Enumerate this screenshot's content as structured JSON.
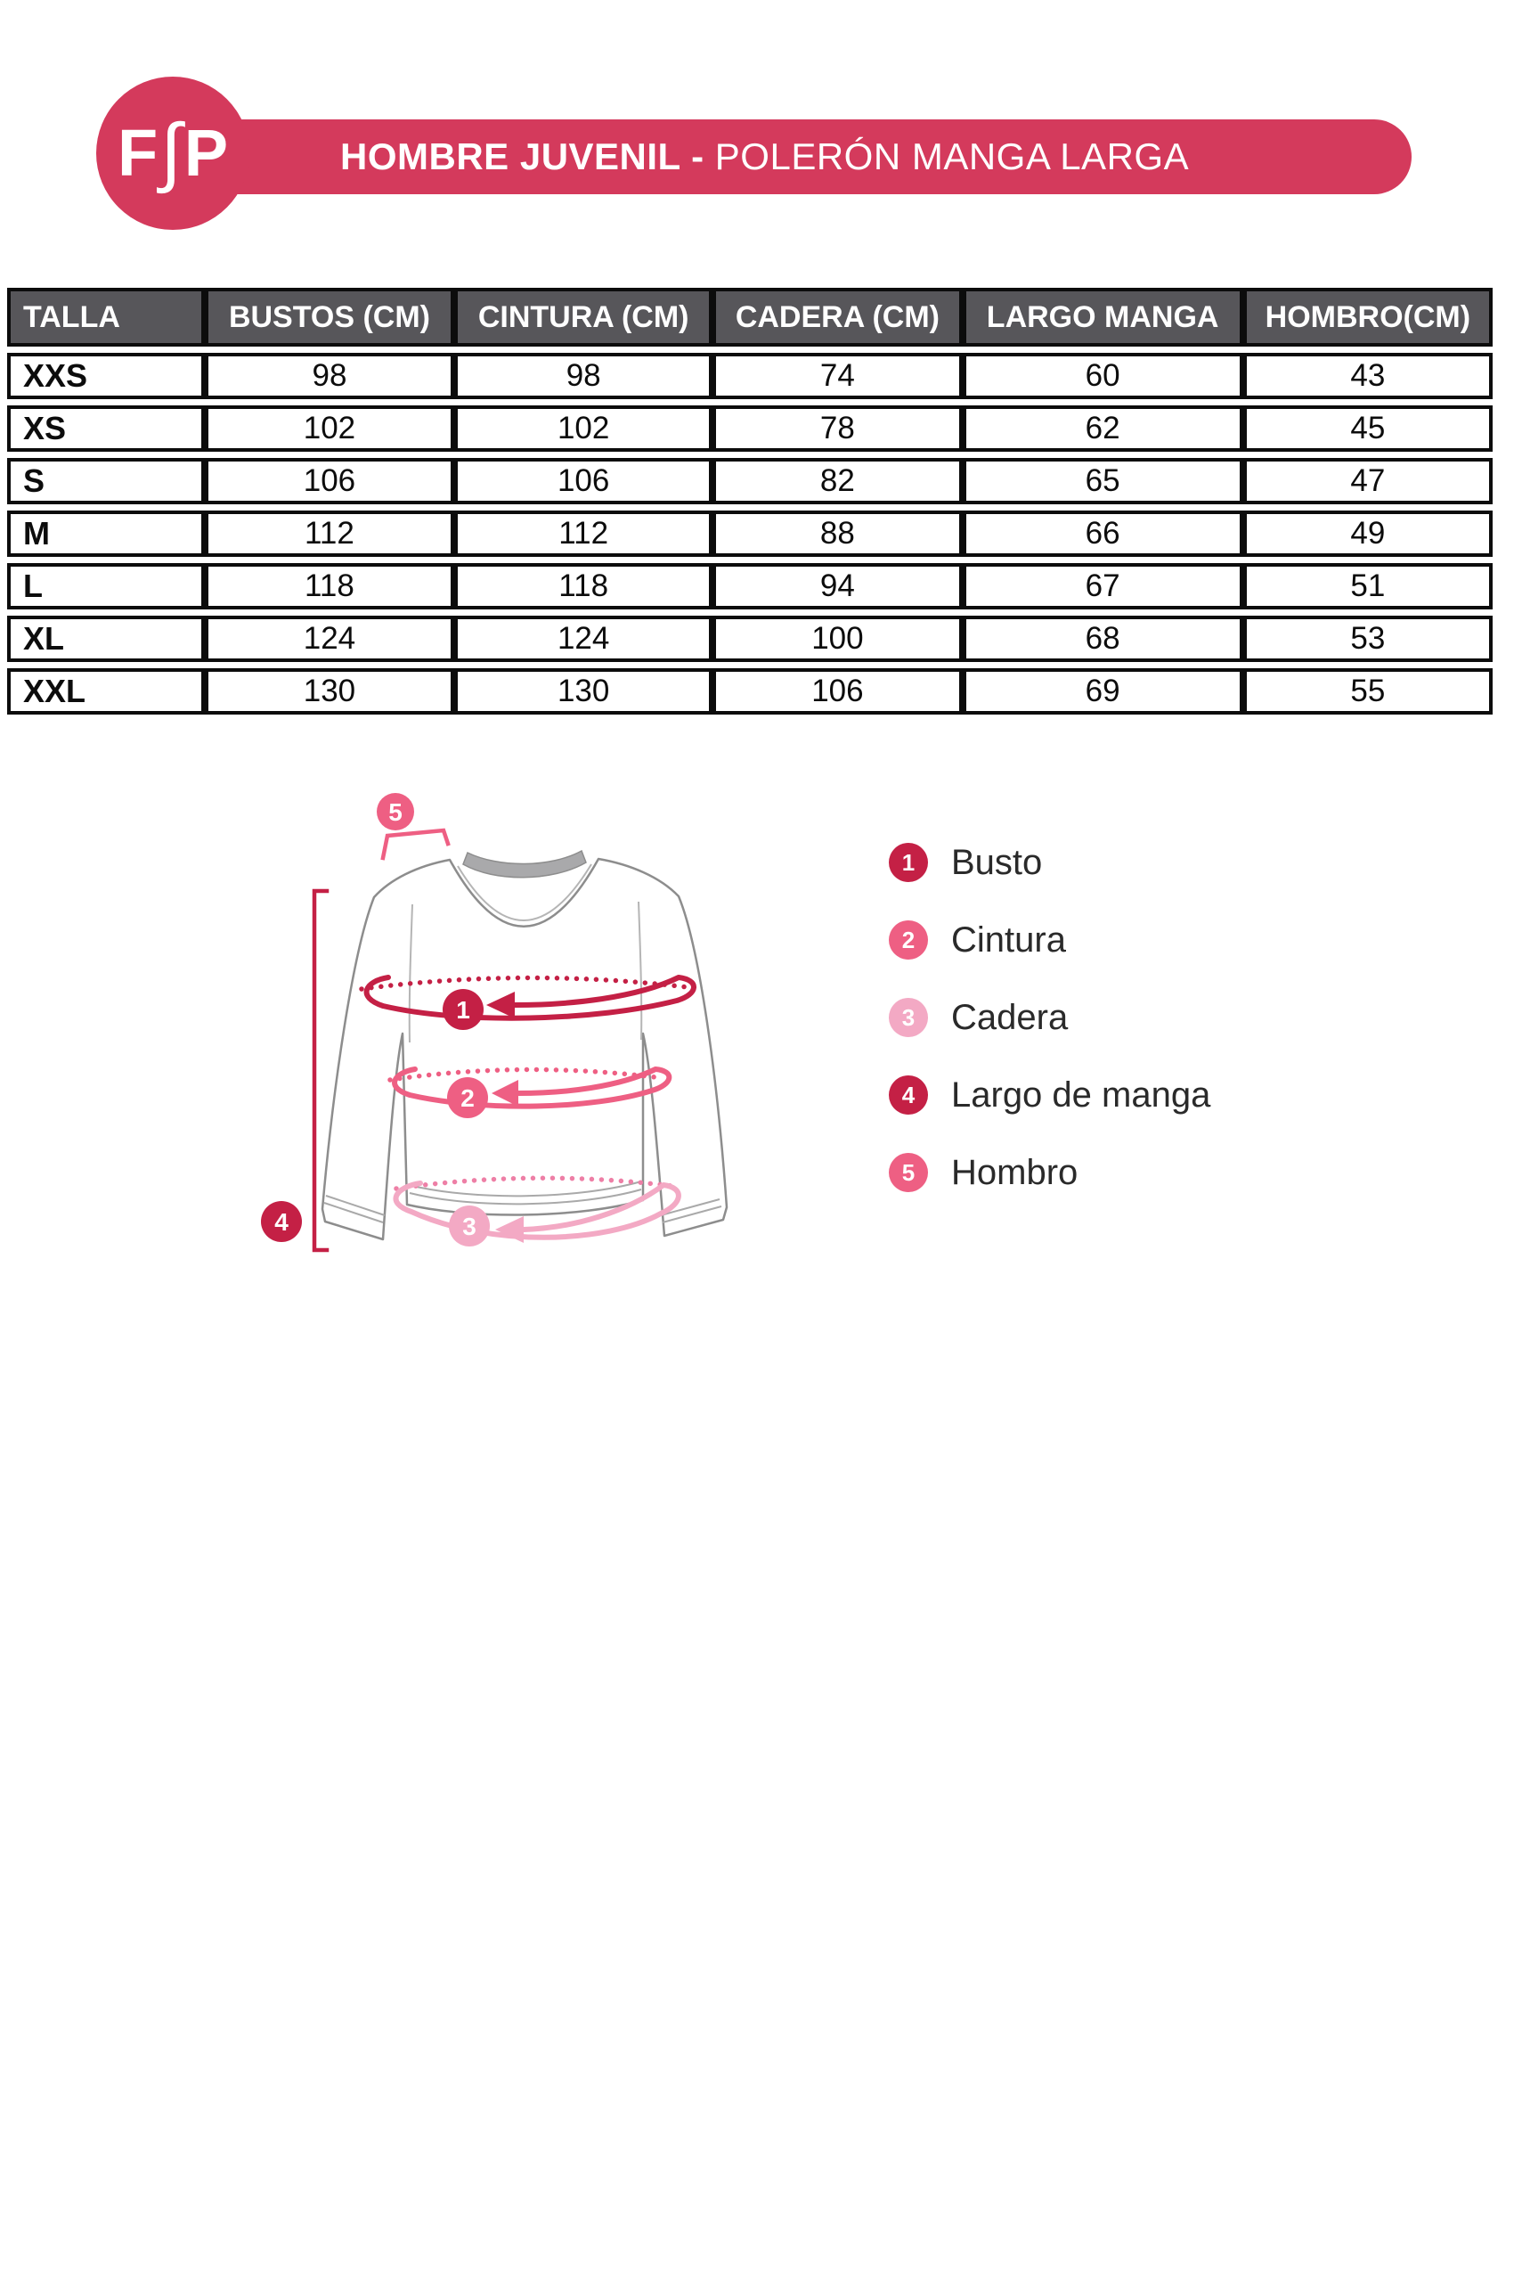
{
  "header": {
    "logo_left": "F",
    "logo_mid": "∫",
    "logo_right": "P",
    "title_bold": "HOMBRE JUVENIL - ",
    "title_regular": "POLERÓN MANGA LARGA"
  },
  "colors": {
    "banner_crimson": "#d43a5c",
    "badge_dark": "#c42045",
    "badge_mid_pink": "#ee5f83",
    "badge_light_pink": "#f3a9c4",
    "table_header_bg": "#57565a",
    "table_border": "#0c0c0c"
  },
  "table": {
    "columns": [
      "TALLA",
      "BUSTOS (CM)",
      "CINTURA (CM)",
      "CADERA (CM)",
      "LARGO MANGA",
      "HOMBRO(CM)"
    ],
    "rows": [
      {
        "size": "XXS",
        "values": [
          "98",
          "98",
          "74",
          "60",
          "43"
        ]
      },
      {
        "size": "XS",
        "values": [
          "102",
          "102",
          "78",
          "62",
          "45"
        ]
      },
      {
        "size": "S",
        "values": [
          "106",
          "106",
          "82",
          "65",
          "47"
        ]
      },
      {
        "size": "M",
        "values": [
          "112",
          "112",
          "88",
          "66",
          "49"
        ]
      },
      {
        "size": "L",
        "values": [
          "118",
          "118",
          "94",
          "67",
          "51"
        ]
      },
      {
        "size": "XL",
        "values": [
          "124",
          "124",
          "100",
          "68",
          "53"
        ]
      },
      {
        "size": "XXL",
        "values": [
          "130",
          "130",
          "106",
          "69",
          "55"
        ]
      }
    ]
  },
  "diagram": {
    "markers": [
      {
        "num": "1"
      },
      {
        "num": "2"
      },
      {
        "num": "3"
      },
      {
        "num": "4"
      },
      {
        "num": "5"
      }
    ]
  },
  "legend": {
    "items": [
      {
        "num": "1",
        "label": "Busto",
        "tone": "dark"
      },
      {
        "num": "2",
        "label": "Cintura",
        "tone": "mid"
      },
      {
        "num": "3",
        "label": "Cadera",
        "tone": "light"
      },
      {
        "num": "4",
        "label": "Largo de manga",
        "tone": "dark"
      },
      {
        "num": "5",
        "label": "Hombro",
        "tone": "mid"
      }
    ]
  }
}
